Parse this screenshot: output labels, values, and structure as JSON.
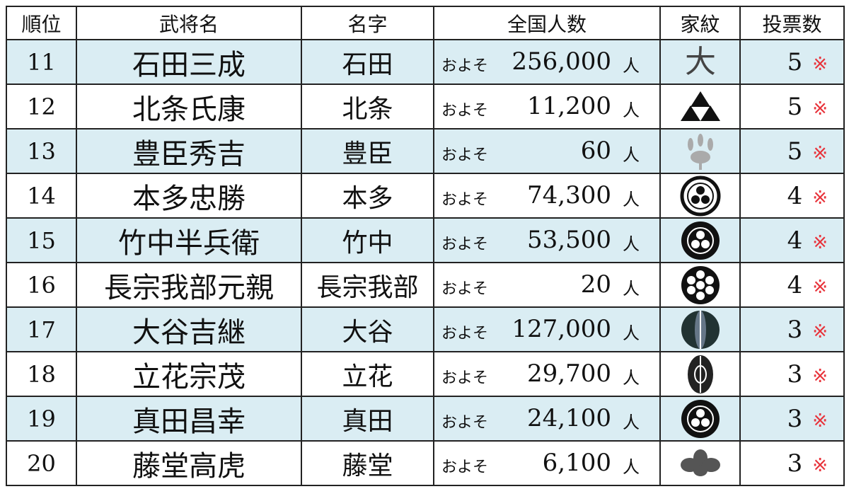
{
  "headers": [
    "順位",
    "武将名",
    "名字",
    "全国人数",
    "家紋",
    "投票数"
  ],
  "about_label": "およそ",
  "unit_label": "人",
  "note_mark": "※",
  "colors": {
    "alt_row": "#daedf3",
    "note_mark": "#e8323a",
    "border": "#222222"
  },
  "rows": [
    {
      "rank": "11",
      "name": "石田三成",
      "myoji": "石田",
      "population": "256,000",
      "kamon": "daiichi-daiman-daikichi-icon",
      "votes": "5"
    },
    {
      "rank": "12",
      "name": "北条氏康",
      "myoji": "北条",
      "population": "11,200",
      "kamon": "mitsu-uroko-icon",
      "votes": "5"
    },
    {
      "rank": "13",
      "name": "豊臣秀吉",
      "myoji": "豊臣",
      "population": "60",
      "kamon": "kiri-icon",
      "votes": "5"
    },
    {
      "rank": "14",
      "name": "本多忠勝",
      "myoji": "本多",
      "population": "74,300",
      "kamon": "maru-ni-tachi-aoi-icon",
      "votes": "4"
    },
    {
      "rank": "15",
      "name": "竹中半兵衛",
      "myoji": "竹中",
      "population": "53,500",
      "kamon": "kuruma-icon",
      "votes": "4"
    },
    {
      "rank": "16",
      "name": "長宗我部元親",
      "myoji": "長宗我部",
      "population": "20",
      "kamon": "katabami-icon",
      "votes": "4"
    },
    {
      "rank": "17",
      "name": "大谷吉継",
      "myoji": "大谷",
      "population": "127,000",
      "kamon": "mukai-cho-icon",
      "votes": "3"
    },
    {
      "rank": "18",
      "name": "立花宗茂",
      "myoji": "立花",
      "population": "29,700",
      "kamon": "gion-mamori-icon",
      "votes": "3"
    },
    {
      "rank": "19",
      "name": "真田昌幸",
      "myoji": "真田",
      "population": "24,100",
      "kamon": "rokumonsen-icon",
      "votes": "3"
    },
    {
      "rank": "20",
      "name": "藤堂高虎",
      "myoji": "藤堂",
      "population": "6,100",
      "kamon": "tsuta-icon",
      "votes": "3"
    }
  ]
}
